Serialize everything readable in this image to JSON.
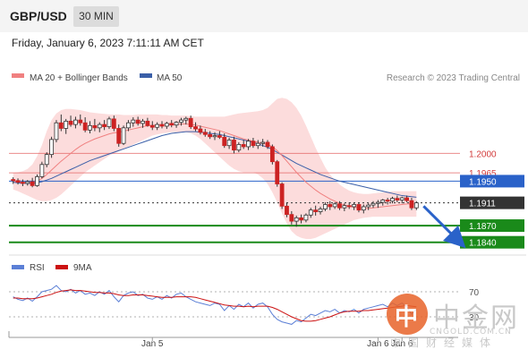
{
  "header": {
    "pair": "GBP/USD",
    "timeframe": "30 MIN",
    "datetime": "Friday, January 6, 2023 7:11:11 AM CET"
  },
  "legend": {
    "ma20_label": "MA 20 + Bollinger Bands",
    "ma50_label": "MA 50",
    "ma20_color": "#f08080",
    "ma50_color": "#3a5fa8",
    "credit": "Research © 2023 Trading Central"
  },
  "rsi_legend": {
    "rsi_label": "RSI",
    "ma9_label": "9MA",
    "rsi_color": "#5b7fd6",
    "ma9_color": "#cc1111"
  },
  "watermark": {
    "logo_char": "中",
    "name": "中金网",
    "url": "CNGOLD.COM.CN",
    "tagline": "中国财经媒体"
  },
  "chart_data": [
    {
      "type": "candlestick",
      "title": "GBP/USD",
      "x_tick_labels": [
        "Jan 5",
        "Jan 6",
        "Jan 6"
      ],
      "ylim": [
        1.1825,
        1.2115
      ],
      "candles": [
        [
          1.1953,
          1.1957,
          1.1945,
          1.1951
        ],
        [
          1.1951,
          1.1955,
          1.1944,
          1.1948
        ],
        [
          1.1948,
          1.1953,
          1.1941,
          1.1946
        ],
        [
          1.1946,
          1.1952,
          1.1942,
          1.1949
        ],
        [
          1.1949,
          1.1956,
          1.1939,
          1.1942
        ],
        [
          1.1942,
          1.1962,
          1.194,
          1.1958
        ],
        [
          1.1958,
          1.1985,
          1.1955,
          1.198
        ],
        [
          1.198,
          1.2002,
          1.1975,
          1.1998
        ],
        [
          1.1998,
          1.203,
          1.1992,
          1.2025
        ],
        [
          1.2025,
          1.206,
          1.202,
          1.2055
        ],
        [
          1.2055,
          1.207,
          1.204,
          1.2045
        ],
        [
          1.2045,
          1.2062,
          1.2035,
          1.2058
        ],
        [
          1.2058,
          1.2068,
          1.2048,
          1.2052
        ],
        [
          1.2052,
          1.2066,
          1.2045,
          1.206
        ],
        [
          1.206,
          1.207,
          1.205,
          1.2055
        ],
        [
          1.2055,
          1.2065,
          1.2038,
          1.2042
        ],
        [
          1.2042,
          1.2058,
          1.2036,
          1.205
        ],
        [
          1.205,
          1.2062,
          1.204,
          1.2046
        ],
        [
          1.2046,
          1.2056,
          1.2038,
          1.2052
        ],
        [
          1.2052,
          1.206,
          1.2042,
          1.2048
        ],
        [
          1.2048,
          1.2066,
          1.2044,
          1.2062
        ],
        [
          1.2062,
          1.2068,
          1.204,
          1.2045
        ],
        [
          1.2045,
          1.2052,
          1.2012,
          1.2018
        ],
        [
          1.2018,
          1.205,
          1.2015,
          1.2046
        ],
        [
          1.2046,
          1.206,
          1.204,
          1.2055
        ],
        [
          1.2055,
          1.2065,
          1.2048,
          1.206
        ],
        [
          1.206,
          1.2066,
          1.205,
          1.2054
        ],
        [
          1.2054,
          1.2062,
          1.2046,
          1.2058
        ],
        [
          1.2058,
          1.2064,
          1.2048,
          1.205
        ],
        [
          1.205,
          1.2058,
          1.2042,
          1.2047
        ],
        [
          1.2047,
          1.2056,
          1.2042,
          1.2052
        ],
        [
          1.2052,
          1.2058,
          1.2045,
          1.2049
        ],
        [
          1.2049,
          1.2057,
          1.2044,
          1.2054
        ],
        [
          1.2054,
          1.206,
          1.2047,
          1.2051
        ],
        [
          1.2051,
          1.2058,
          1.2046,
          1.2056
        ],
        [
          1.2056,
          1.2064,
          1.205,
          1.206
        ],
        [
          1.206,
          1.2066,
          1.2052,
          1.2063
        ],
        [
          1.2063,
          1.2068,
          1.2044,
          1.2048
        ],
        [
          1.2048,
          1.2056,
          1.204,
          1.2044
        ],
        [
          1.2044,
          1.205,
          1.2034,
          1.2038
        ],
        [
          1.2038,
          1.2044,
          1.203,
          1.2034
        ],
        [
          1.2034,
          1.204,
          1.2026,
          1.203
        ],
        [
          1.203,
          1.2038,
          1.2024,
          1.2032
        ],
        [
          1.2032,
          1.204,
          1.2026,
          1.2029
        ],
        [
          1.2029,
          1.2036,
          1.201,
          1.2014
        ],
        [
          1.2014,
          1.2028,
          1.2008,
          1.2024
        ],
        [
          1.2024,
          1.203,
          1.2,
          1.2006
        ],
        [
          1.2006,
          1.202,
          1.2002,
          1.2016
        ],
        [
          1.2016,
          1.2024,
          1.2008,
          1.2012
        ],
        [
          1.2012,
          1.2026,
          1.2006,
          1.2022
        ],
        [
          1.2022,
          1.2028,
          1.201,
          1.2014
        ],
        [
          1.2014,
          1.2024,
          1.2008,
          1.2018
        ],
        [
          1.2018,
          1.2026,
          1.2012,
          1.202
        ],
        [
          1.202,
          1.2024,
          1.2008,
          1.2012
        ],
        [
          1.2012,
          1.2016,
          1.198,
          1.1985
        ],
        [
          1.1985,
          1.1988,
          1.194,
          1.1945
        ],
        [
          1.1945,
          1.1948,
          1.19,
          1.1905
        ],
        [
          1.1905,
          1.1912,
          1.1885,
          1.189
        ],
        [
          1.189,
          1.1896,
          1.1872,
          1.1878
        ],
        [
          1.1878,
          1.1888,
          1.1868,
          1.1884
        ],
        [
          1.1884,
          1.189,
          1.1874,
          1.188
        ],
        [
          1.188,
          1.1892,
          1.1876,
          1.1889
        ],
        [
          1.1889,
          1.1902,
          1.1884,
          1.1898
        ],
        [
          1.1898,
          1.1906,
          1.1888,
          1.1895
        ],
        [
          1.1895,
          1.1904,
          1.189,
          1.19
        ],
        [
          1.19,
          1.1912,
          1.1896,
          1.1908
        ],
        [
          1.1908,
          1.1914,
          1.1898,
          1.1904
        ],
        [
          1.1904,
          1.1912,
          1.19,
          1.1909
        ],
        [
          1.1909,
          1.1914,
          1.1898,
          1.1902
        ],
        [
          1.1902,
          1.191,
          1.1896,
          1.1906
        ],
        [
          1.1906,
          1.1912,
          1.19,
          1.1904
        ],
        [
          1.1904,
          1.1912,
          1.1898,
          1.1908
        ],
        [
          1.1908,
          1.1912,
          1.1894,
          1.1898
        ],
        [
          1.1898,
          1.1908,
          1.1892,
          1.1904
        ],
        [
          1.1904,
          1.191,
          1.1898,
          1.1907
        ],
        [
          1.1907,
          1.1914,
          1.1902,
          1.191
        ],
        [
          1.191,
          1.1916,
          1.1902,
          1.1912
        ],
        [
          1.1912,
          1.1918,
          1.1906,
          1.1916
        ],
        [
          1.1916,
          1.192,
          1.1908,
          1.1914
        ],
        [
          1.1914,
          1.1922,
          1.191,
          1.1919
        ],
        [
          1.1919,
          1.1924,
          1.1912,
          1.1916
        ],
        [
          1.1916,
          1.1922,
          1.191,
          1.192
        ],
        [
          1.192,
          1.1924,
          1.1912,
          1.1915
        ],
        [
          1.1915,
          1.192,
          1.1898,
          1.1902
        ],
        [
          1.1902,
          1.1914,
          1.1898,
          1.1911
        ]
      ],
      "overlays": {
        "ma20": [
          1.195,
          1.1949,
          1.1948,
          1.1948,
          1.1948,
          1.195,
          1.1955,
          1.1962,
          1.197,
          1.1978,
          1.1986,
          1.1993,
          1.2,
          1.2007,
          1.2013,
          1.2018,
          1.2022,
          1.2026,
          1.2029,
          1.2032,
          1.2035,
          1.2037,
          1.2038,
          1.204,
          1.2042,
          1.2044,
          1.2046,
          1.2048,
          1.205,
          1.2051,
          1.2051,
          1.2052,
          1.2052,
          1.2052,
          1.2052,
          1.2053,
          1.2053,
          1.2052,
          1.2051,
          1.2049,
          1.2047,
          1.2045,
          1.2043,
          1.2041,
          1.2038,
          1.2035,
          1.2032,
          1.2029,
          1.2026,
          1.2024,
          1.2022,
          1.202,
          1.2018,
          1.2016,
          1.2012,
          1.2005,
          1.1996,
          1.1986,
          1.1976,
          1.1966,
          1.1957,
          1.1948,
          1.1941,
          1.1934,
          1.1928,
          1.1923,
          1.1918,
          1.1914,
          1.191,
          1.1907,
          1.1905,
          1.1903,
          1.1902,
          1.1901,
          1.1901,
          1.1902,
          1.1903,
          1.1904,
          1.1905,
          1.1906,
          1.1907,
          1.1908,
          1.1909,
          1.1909,
          1.1909
        ],
        "ma50": [
          1.1948,
          1.1947,
          1.1946,
          1.1946,
          1.1946,
          1.1947,
          1.1949,
          1.1952,
          1.1955,
          1.1959,
          1.1963,
          1.1967,
          1.1971,
          1.1975,
          1.1979,
          1.1983,
          1.1987,
          1.199,
          1.1993,
          1.1996,
          1.1999,
          1.2002,
          1.2005,
          1.2008,
          1.2011,
          1.2014,
          1.2017,
          1.202,
          1.2023,
          1.2026,
          1.2029,
          1.2032,
          1.2034,
          1.2036,
          1.2037,
          1.2038,
          1.2039,
          1.2039,
          1.2039,
          1.2038,
          1.2037,
          1.2036,
          1.2035,
          1.2034,
          1.2032,
          1.203,
          1.2028,
          1.2026,
          1.2024,
          1.2022,
          1.202,
          1.2017,
          1.2014,
          1.2011,
          1.2007,
          1.2002,
          1.1997,
          1.1992,
          1.1987,
          1.1982,
          1.1978,
          1.1974,
          1.197,
          1.1966,
          1.1962,
          1.1959,
          1.1956,
          1.1953,
          1.195,
          1.1948,
          1.1946,
          1.1944,
          1.1942,
          1.194,
          1.1938,
          1.1936,
          1.1934,
          1.1932,
          1.193,
          1.1928,
          1.1926,
          1.1924,
          1.1923,
          1.1922,
          1.1921
        ],
        "bb_upper": [
          1.1965,
          1.1966,
          1.1968,
          1.1972,
          1.198,
          1.1995,
          1.2015,
          1.204,
          1.206,
          1.2072,
          1.2078,
          1.208,
          1.208,
          1.2079,
          1.2078,
          1.2076,
          1.2074,
          1.2073,
          1.2072,
          1.2071,
          1.207,
          1.207,
          1.207,
          1.2069,
          1.2069,
          1.2069,
          1.207,
          1.207,
          1.207,
          1.207,
          1.207,
          1.2069,
          1.2069,
          1.2068,
          1.2068,
          1.2068,
          1.2068,
          1.2067,
          1.2066,
          1.2066,
          1.2066,
          1.2066,
          1.2066,
          1.2066,
          1.2066,
          1.2068,
          1.207,
          1.2072,
          1.2073,
          1.2074,
          1.2075,
          1.2076,
          1.2078,
          1.2082,
          1.209,
          1.2098,
          1.21,
          1.2098,
          1.2092,
          1.2082,
          1.2068,
          1.205,
          1.203,
          1.201,
          1.1992,
          1.1975,
          1.1962,
          1.1952,
          1.1944,
          1.1938,
          1.1933,
          1.193,
          1.1928,
          1.1927,
          1.1927,
          1.1928,
          1.1929,
          1.193,
          1.1931,
          1.1932,
          1.1932,
          1.1932,
          1.1932,
          1.1932,
          1.1932
        ],
        "bb_lower": [
          1.1935,
          1.1932,
          1.1928,
          1.1924,
          1.192,
          1.1916,
          1.1914,
          1.1914,
          1.1916,
          1.192,
          1.1926,
          1.1934,
          1.1942,
          1.195,
          1.1958,
          1.1966,
          1.1972,
          1.1978,
          1.1984,
          1.199,
          1.1996,
          1.2,
          1.2004,
          1.2008,
          1.2012,
          1.2016,
          1.202,
          1.2024,
          1.2028,
          1.2032,
          1.2034,
          1.2036,
          1.2037,
          1.2038,
          1.2038,
          1.2038,
          1.2038,
          1.2036,
          1.2032,
          1.2026,
          1.2018,
          1.201,
          1.2002,
          1.1994,
          1.1986,
          1.1978,
          1.1972,
          1.1968,
          1.1966,
          1.1966,
          1.1966,
          1.1962,
          1.1955,
          1.1945,
          1.193,
          1.1912,
          1.1892,
          1.1874,
          1.186,
          1.1852,
          1.1848,
          1.1846,
          1.1846,
          1.1848,
          1.1852,
          1.1856,
          1.186,
          1.1864,
          1.1868,
          1.1872,
          1.1876,
          1.188,
          1.1882,
          1.1884,
          1.1885,
          1.1886,
          1.1886,
          1.1886,
          1.1886,
          1.1886,
          1.1886,
          1.1886,
          1.1886,
          1.1886,
          1.1886
        ]
      },
      "levels": [
        {
          "value": 1.2,
          "label": "1.2000",
          "kind": "resistance",
          "color": "#e35b5b"
        },
        {
          "value": 1.1965,
          "label": "1.1965",
          "kind": "resistance",
          "color": "#e35b5b"
        },
        {
          "value": 1.195,
          "label": "1.1950",
          "kind": "pivot",
          "color": "#2a62c9"
        },
        {
          "value": 1.1911,
          "label": "1.1911",
          "kind": "current",
          "color": "#333333"
        },
        {
          "value": 1.187,
          "label": "1.1870",
          "kind": "support",
          "color": "#1a8a1a"
        },
        {
          "value": 1.184,
          "label": "1.1840",
          "kind": "support",
          "color": "#1a8a1a"
        }
      ],
      "forecast_arrow": {
        "from": 1.1905,
        "to": 1.1843,
        "direction": "down",
        "color": "#2a62c9"
      }
    },
    {
      "type": "line",
      "series": [
        {
          "name": "RSI",
          "values": [
            62,
            58,
            56,
            60,
            55,
            62,
            70,
            72,
            74,
            80,
            72,
            70,
            74,
            68,
            72,
            66,
            68,
            64,
            70,
            66,
            72,
            62,
            54,
            64,
            68,
            70,
            64,
            66,
            60,
            58,
            62,
            58,
            64,
            60,
            66,
            68,
            62,
            58,
            54,
            52,
            50,
            48,
            52,
            50,
            40,
            48,
            42,
            50,
            46,
            52,
            44,
            50,
            52,
            46,
            34,
            26,
            22,
            20,
            18,
            24,
            22,
            28,
            34,
            32,
            36,
            40,
            38,
            42,
            36,
            40,
            38,
            42,
            36,
            42,
            44,
            46,
            48,
            50,
            46,
            52,
            48,
            52,
            46,
            34,
            42
          ]
        },
        {
          "name": "9MA",
          "values": [
            60,
            60,
            59,
            59,
            59,
            60,
            62,
            64,
            66,
            69,
            71,
            72,
            73,
            72,
            72,
            71,
            70,
            69,
            69,
            68,
            68,
            67,
            65,
            64,
            64,
            65,
            65,
            65,
            64,
            63,
            62,
            61,
            61,
            61,
            62,
            62,
            62,
            62,
            61,
            59,
            57,
            55,
            53,
            51,
            49,
            48,
            47,
            47,
            46,
            47,
            46,
            47,
            47,
            47,
            45,
            42,
            38,
            34,
            30,
            27,
            24,
            23,
            23,
            24,
            26,
            28,
            30,
            33,
            36,
            38,
            39,
            39,
            39,
            40,
            40,
            41,
            42,
            43,
            44,
            45,
            46,
            47,
            48,
            47,
            46
          ]
        }
      ],
      "ylim": [
        0,
        100
      ],
      "reference_lines": [
        {
          "value": 70,
          "label": "70"
        },
        {
          "value": 30,
          "label": "30"
        }
      ]
    }
  ]
}
